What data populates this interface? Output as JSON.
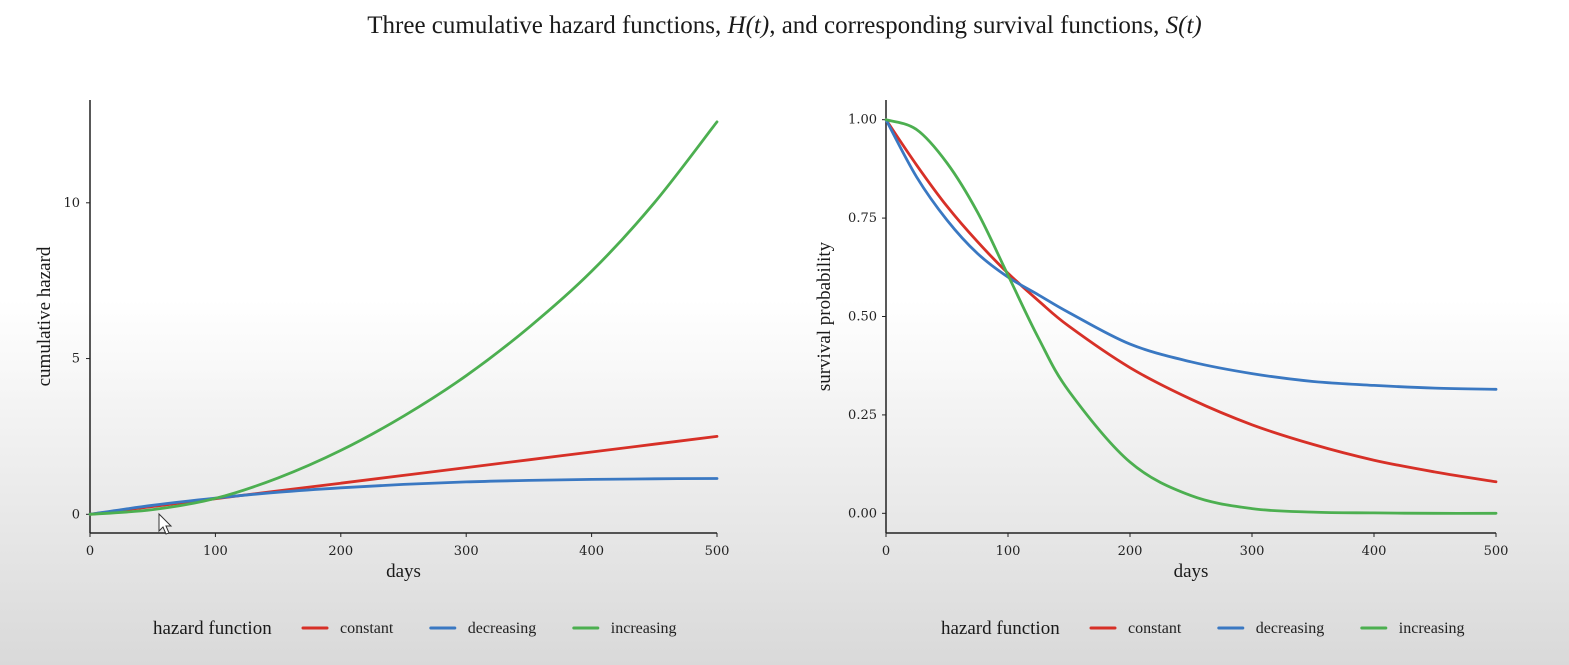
{
  "page": {
    "title_prefix": "Three cumulative hazard functions, ",
    "title_h": "H(t)",
    "title_mid": ", and corresponding survival functions, ",
    "title_s": "S(t)"
  },
  "legend": {
    "title": "hazard function",
    "items": [
      {
        "label": "constant",
        "color": "#d73027"
      },
      {
        "label": "decreasing",
        "color": "#3a78c2"
      },
      {
        "label": "increasing",
        "color": "#4caf50"
      }
    ]
  },
  "chart_data": [
    {
      "type": "line",
      "xlabel": "days",
      "ylabel": "cumulative hazard",
      "xlim": [
        0,
        500
      ],
      "ylim": [
        -0.6,
        13.3
      ],
      "xticks": [
        0,
        100,
        200,
        300,
        400,
        500
      ],
      "yticks": [
        0,
        5,
        10
      ],
      "ytick_labels": [
        "0",
        "5",
        "10"
      ],
      "x": [
        0,
        50,
        100,
        150,
        200,
        250,
        300,
        350,
        400,
        450,
        500
      ],
      "series": [
        {
          "name": "constant",
          "color": "#d73027",
          "values": [
            0,
            0.25,
            0.5,
            0.75,
            1.0,
            1.25,
            1.5,
            1.75,
            2.0,
            2.25,
            2.5
          ]
        },
        {
          "name": "decreasing",
          "color": "#3a78c2",
          "values": [
            0,
            0.29,
            0.52,
            0.71,
            0.85,
            0.96,
            1.04,
            1.09,
            1.12,
            1.14,
            1.15
          ]
        },
        {
          "name": "increasing",
          "color": "#4caf50",
          "values": [
            0,
            0.15,
            0.51,
            1.17,
            2.05,
            3.15,
            4.45,
            6.0,
            7.8,
            10.0,
            12.6
          ]
        }
      ]
    },
    {
      "type": "line",
      "xlabel": "days",
      "ylabel": "survival probability",
      "xlim": [
        0,
        500
      ],
      "ylim": [
        -0.05,
        1.05
      ],
      "xticks": [
        0,
        100,
        200,
        300,
        400,
        500
      ],
      "yticks": [
        0,
        0.25,
        0.5,
        0.75,
        1.0
      ],
      "ytick_labels": [
        "0.00",
        "0.25",
        "0.50",
        "0.75",
        "1.00"
      ],
      "x": [
        0,
        25,
        50,
        75,
        100,
        125,
        150,
        200,
        250,
        300,
        350,
        400,
        450,
        500
      ],
      "series": [
        {
          "name": "constant",
          "color": "#d73027",
          "values": [
            1.0,
            0.885,
            0.78,
            0.69,
            0.61,
            0.54,
            0.475,
            0.37,
            0.29,
            0.225,
            0.175,
            0.135,
            0.105,
            0.08
          ]
        },
        {
          "name": "decreasing",
          "color": "#3a78c2",
          "values": [
            1.0,
            0.855,
            0.745,
            0.66,
            0.6,
            0.555,
            0.51,
            0.43,
            0.385,
            0.355,
            0.335,
            0.325,
            0.318,
            0.315
          ]
        },
        {
          "name": "increasing",
          "color": "#4caf50",
          "values": [
            1.0,
            0.975,
            0.89,
            0.765,
            0.605,
            0.445,
            0.31,
            0.13,
            0.045,
            0.012,
            0.003,
            0.001,
            0.0,
            0.0
          ]
        }
      ]
    }
  ]
}
